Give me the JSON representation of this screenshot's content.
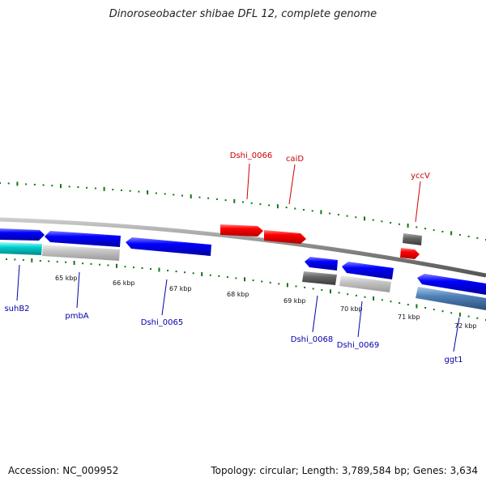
{
  "title": "Dinoroseobacter shibae DFL 12, complete genome",
  "footer": {
    "accession": "Accession: NC_009952",
    "summary": "Topology: circular; Length: 3,789,584 bp; Genes: 3,634"
  },
  "colors": {
    "forward_cds": "#ff0000",
    "forward_other": "#666666",
    "reverse_cds": "#0000ff",
    "reverse_other": "#9aa0a8",
    "forward_label": "#cc0000",
    "reverse_label": "#0000aa",
    "backbone": "#888888",
    "ticks": "#117711"
  },
  "kbp_ticks": [
    "65 kbp",
    "66 kbp",
    "67 kbp",
    "68 kbp",
    "69 kbp",
    "70 kbp",
    "71 kbp",
    "72 kbp"
  ],
  "forward_genes": [
    {
      "label": "Dshi_0066"
    },
    {
      "label": "caiD"
    },
    {
      "label": "yccV"
    }
  ],
  "reverse_genes": [
    {
      "label": "suhB2"
    },
    {
      "label": "pmbA"
    },
    {
      "label": "Dshi_0065"
    },
    {
      "label": "Dshi_0068"
    },
    {
      "label": "Dshi_0069"
    },
    {
      "label": "ggt1"
    }
  ]
}
